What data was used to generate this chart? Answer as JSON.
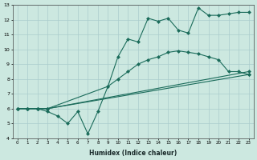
{
  "xlabel": "Humidex (Indice chaleur)",
  "background_color": "#cce8e0",
  "grid_color": "#aacccc",
  "line_color": "#1a6b5a",
  "xlim": [
    -0.5,
    23.5
  ],
  "ylim": [
    4,
    13
  ],
  "xticks": [
    0,
    1,
    2,
    3,
    4,
    5,
    6,
    7,
    8,
    9,
    10,
    11,
    12,
    13,
    14,
    15,
    16,
    17,
    18,
    19,
    20,
    21,
    22,
    23
  ],
  "yticks": [
    4,
    5,
    6,
    7,
    8,
    9,
    10,
    11,
    12,
    13
  ],
  "line1_x": [
    0,
    1,
    2,
    3,
    23
  ],
  "line1_y": [
    6.0,
    6.0,
    6.0,
    6.0,
    8.3
  ],
  "line2_x": [
    0,
    1,
    2,
    3,
    23
  ],
  "line2_y": [
    6.0,
    6.0,
    6.0,
    6.0,
    8.5
  ],
  "line3_x": [
    0,
    1,
    2,
    3,
    9,
    10,
    11,
    12,
    13,
    14,
    15,
    16,
    17,
    18,
    19,
    20,
    21,
    22,
    23
  ],
  "line3_y": [
    6.0,
    6.0,
    6.0,
    6.0,
    7.5,
    8.0,
    8.5,
    9.0,
    9.3,
    9.5,
    9.8,
    9.9,
    9.8,
    9.7,
    9.5,
    9.3,
    8.5,
    8.5,
    8.3
  ],
  "line4_x": [
    0,
    1,
    2,
    3,
    4,
    5,
    6,
    7,
    8,
    9,
    10,
    11,
    12,
    13,
    14,
    15,
    16,
    17,
    18,
    19,
    20,
    21,
    22,
    23
  ],
  "line4_y": [
    6.0,
    6.0,
    6.0,
    5.8,
    5.5,
    5.0,
    5.8,
    4.3,
    5.8,
    7.5,
    9.5,
    10.7,
    10.5,
    12.1,
    11.9,
    12.1,
    11.3,
    11.1,
    12.8,
    12.3,
    12.3,
    12.4,
    12.5,
    12.5
  ],
  "markersize": 2.5
}
